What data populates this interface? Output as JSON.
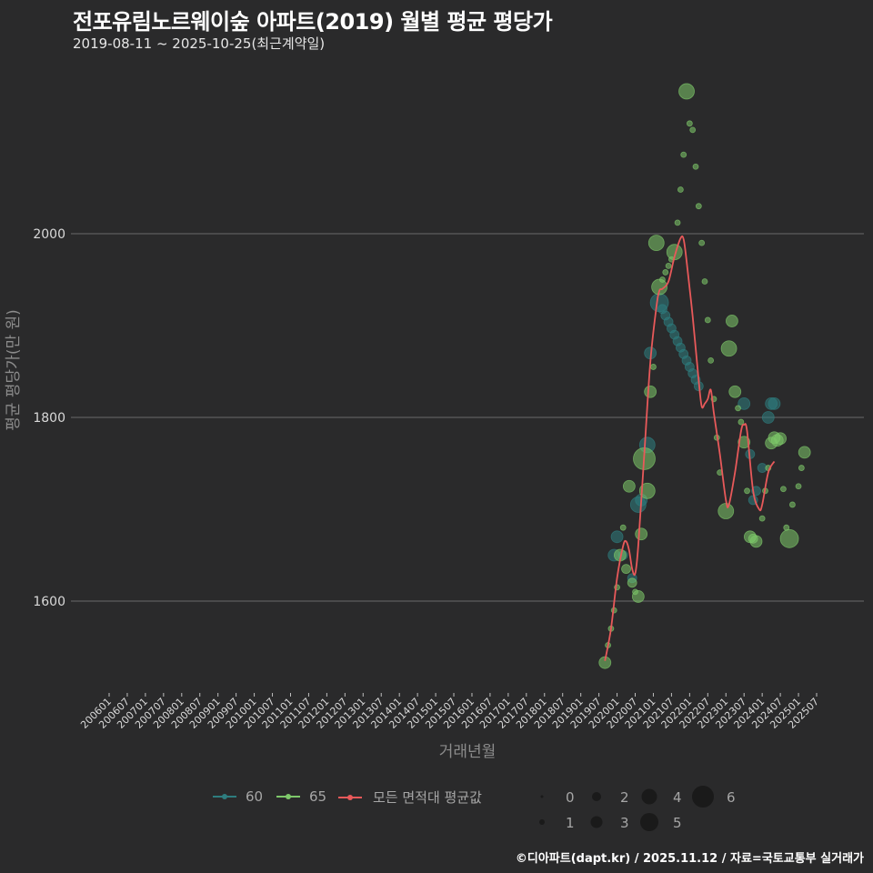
{
  "header": {
    "title": "전포유림노르웨이숲 아파트(2019) 월별 평균 평당가",
    "subtitle": "2019-08-11 ~ 2025-10-25(최근계약일)"
  },
  "caption": "©디아파트(dapt.kr) / 2025.11.12 / 자료=국토교통부 실거래가",
  "colors": {
    "background": "#2a2a2b",
    "grid": "#6b6b6b",
    "series_60": "#2e7d7f",
    "series_65": "#7ec86a",
    "average_line": "#e8595a"
  },
  "legend": {
    "series": [
      {
        "label": "60",
        "color": "#2e7d7f"
      },
      {
        "label": "65",
        "color": "#7ec86a"
      },
      {
        "label": "모든 면적대 평균값",
        "color": "#e8595a"
      }
    ],
    "sizes": [
      "0",
      "1",
      "2",
      "3",
      "4",
      "5",
      "6"
    ]
  },
  "chart_data": {
    "type": "scatter",
    "title": "전포유림노르웨이숲 아파트(2019) 월별 평균 평당가",
    "subtitle": "2019-08-11 ~ 2025-10-25(최근계약일)",
    "xlabel": "거래년월",
    "ylabel": "평균 평당가(만 원)",
    "ylim": [
      1510,
      2255
    ],
    "yticks": [
      1600,
      1800,
      2000
    ],
    "xticks": [
      "200601",
      "200607",
      "200701",
      "200707",
      "200801",
      "200807",
      "200901",
      "200907",
      "201001",
      "201007",
      "201101",
      "201107",
      "201201",
      "201207",
      "201301",
      "201307",
      "201401",
      "201407",
      "201501",
      "201507",
      "201601",
      "201607",
      "201701",
      "201707",
      "201801",
      "201807",
      "201901",
      "201907",
      "202001",
      "202007",
      "202101",
      "202107",
      "202201",
      "202207",
      "202301",
      "202307",
      "202401",
      "202407",
      "202501",
      "202507"
    ],
    "grid": true,
    "legend_position": "bottom",
    "series": [
      {
        "name": "60",
        "points": [
          [
            "201912",
            1650,
            3
          ],
          [
            "202001",
            1670,
            3
          ],
          [
            "202003",
            1650,
            2
          ],
          [
            "202006",
            1625,
            2
          ],
          [
            "202008",
            1705,
            4
          ],
          [
            "202009",
            1710,
            3
          ],
          [
            "202011",
            1770,
            4
          ],
          [
            "202012",
            1870,
            3
          ],
          [
            "202103",
            1925,
            5
          ],
          [
            "202104",
            1918,
            2
          ],
          [
            "202105",
            1911,
            2
          ],
          [
            "202106",
            1904,
            2
          ],
          [
            "202107",
            1897,
            2
          ],
          [
            "202108",
            1890,
            2
          ],
          [
            "202109",
            1883,
            2
          ],
          [
            "202110",
            1876,
            2
          ],
          [
            "202111",
            1869,
            2
          ],
          [
            "202112",
            1862,
            2
          ],
          [
            "202201",
            1855,
            2
          ],
          [
            "202202",
            1848,
            2
          ],
          [
            "202203",
            1841,
            2
          ],
          [
            "202204",
            1834,
            2
          ],
          [
            "202307",
            1815,
            3
          ],
          [
            "202309",
            1760,
            2
          ],
          [
            "202310",
            1710,
            2
          ],
          [
            "202311",
            1720,
            2
          ],
          [
            "202401",
            1745,
            2
          ],
          [
            "202403",
            1800,
            3
          ],
          [
            "202404",
            1815,
            3
          ],
          [
            "202405",
            1815,
            3
          ]
        ]
      },
      {
        "name": "65",
        "points": [
          [
            "201909",
            1533,
            3
          ],
          [
            "201910",
            1552,
            1
          ],
          [
            "201911",
            1570,
            1
          ],
          [
            "201912",
            1590,
            1
          ],
          [
            "202001",
            1615,
            1
          ],
          [
            "202002",
            1650,
            3
          ],
          [
            "202003",
            1680,
            1
          ],
          [
            "202004",
            1635,
            2
          ],
          [
            "202005",
            1725,
            3
          ],
          [
            "202006",
            1620,
            2
          ],
          [
            "202007",
            1610,
            1
          ],
          [
            "202008",
            1605,
            3
          ],
          [
            "202009",
            1673,
            3
          ],
          [
            "202010",
            1755,
            6
          ],
          [
            "202011",
            1720,
            4
          ],
          [
            "202012",
            1828,
            3
          ],
          [
            "202101",
            1855,
            1
          ],
          [
            "202102",
            1990,
            4
          ],
          [
            "202103",
            1942,
            4
          ],
          [
            "202104",
            1950,
            1
          ],
          [
            "202105",
            1958,
            1
          ],
          [
            "202106",
            1965,
            1
          ],
          [
            "202107",
            1972,
            1
          ],
          [
            "202108",
            1980,
            4
          ],
          [
            "202109",
            2012,
            1
          ],
          [
            "202110",
            2048,
            1
          ],
          [
            "202111",
            2086,
            1
          ],
          [
            "202112",
            2155,
            4
          ],
          [
            "202201",
            2120,
            1
          ],
          [
            "202202",
            2113,
            1
          ],
          [
            "202203",
            2073,
            1
          ],
          [
            "202204",
            2030,
            1
          ],
          [
            "202205",
            1990,
            1
          ],
          [
            "202206",
            1948,
            1
          ],
          [
            "202207",
            1906,
            1
          ],
          [
            "202208",
            1862,
            1
          ],
          [
            "202209",
            1820,
            1
          ],
          [
            "202210",
            1778,
            1
          ],
          [
            "202211",
            1740,
            1
          ],
          [
            "202301",
            1698,
            4
          ],
          [
            "202302",
            1875,
            4
          ],
          [
            "202303",
            1905,
            3
          ],
          [
            "202304",
            1828,
            3
          ],
          [
            "202305",
            1810,
            1
          ],
          [
            "202306",
            1795,
            1
          ],
          [
            "202307",
            1773,
            3
          ],
          [
            "202308",
            1720,
            1
          ],
          [
            "202309",
            1670,
            3
          ],
          [
            "202310",
            1668,
            2
          ],
          [
            "202311",
            1665,
            3
          ],
          [
            "202401",
            1690,
            1
          ],
          [
            "202402",
            1720,
            1
          ],
          [
            "202403",
            1745,
            1
          ],
          [
            "202404",
            1772,
            3
          ],
          [
            "202405",
            1778,
            3
          ],
          [
            "202406",
            1775,
            3
          ],
          [
            "202407",
            1777,
            3
          ],
          [
            "202408",
            1722,
            1
          ],
          [
            "202409",
            1680,
            1
          ],
          [
            "202410",
            1668,
            5
          ],
          [
            "202411",
            1705,
            1
          ],
          [
            "202501",
            1725,
            1
          ],
          [
            "202502",
            1745,
            1
          ],
          [
            "202503",
            1762,
            3
          ]
        ]
      }
    ],
    "average_line": [
      [
        "201909",
        1535
      ],
      [
        "201911",
        1570
      ],
      [
        "202001",
        1625
      ],
      [
        "202003",
        1660
      ],
      [
        "202004",
        1665
      ],
      [
        "202005",
        1655
      ],
      [
        "202006",
        1635
      ],
      [
        "202007",
        1630
      ],
      [
        "202008",
        1660
      ],
      [
        "202010",
        1760
      ],
      [
        "202012",
        1860
      ],
      [
        "202102",
        1920
      ],
      [
        "202103",
        1938
      ],
      [
        "202104",
        1940
      ],
      [
        "202106",
        1948
      ],
      [
        "202108",
        1975
      ],
      [
        "202110",
        1995
      ],
      [
        "202111",
        1994
      ],
      [
        "202112",
        1970
      ],
      [
        "202202",
        1910
      ],
      [
        "202204",
        1840
      ],
      [
        "202205",
        1812
      ],
      [
        "202206",
        1815
      ],
      [
        "202207",
        1820
      ],
      [
        "202208",
        1830
      ],
      [
        "202209",
        1805
      ],
      [
        "202211",
        1760
      ],
      [
        "202301",
        1710
      ],
      [
        "202302",
        1705
      ],
      [
        "202304",
        1740
      ],
      [
        "202306",
        1785
      ],
      [
        "202307",
        1792
      ],
      [
        "202308",
        1785
      ],
      [
        "202310",
        1720
      ],
      [
        "202312",
        1700
      ],
      [
        "202401",
        1705
      ],
      [
        "202403",
        1740
      ],
      [
        "202405",
        1752
      ]
    ],
    "size_legend": [
      0,
      1,
      2,
      3,
      4,
      5,
      6
    ]
  }
}
